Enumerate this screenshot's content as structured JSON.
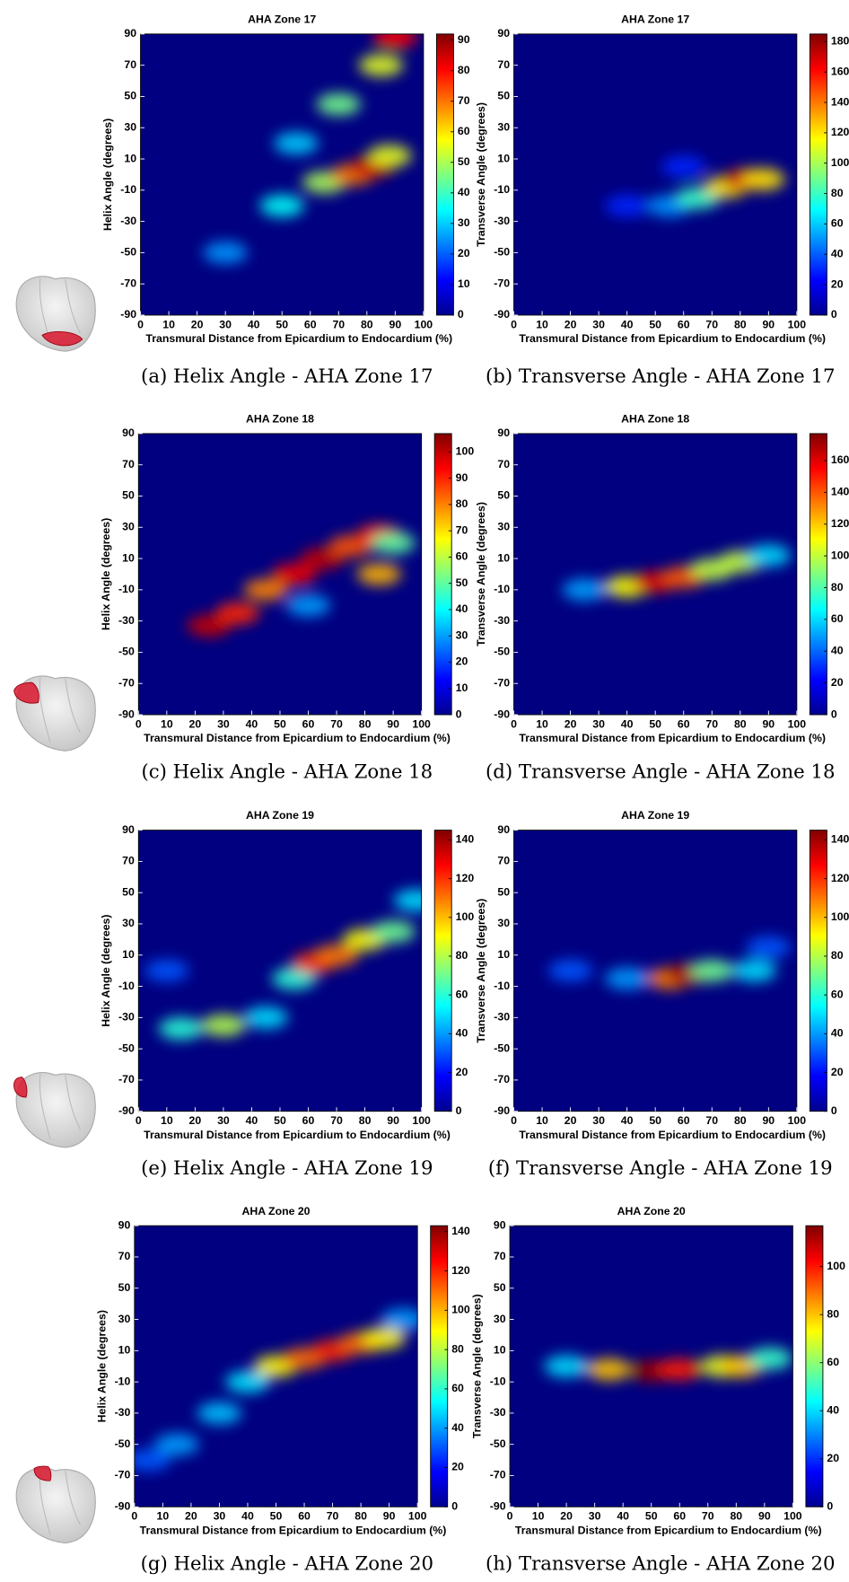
{
  "chart_data": [
    {
      "type": "heatmap",
      "title": "AHA Zone 17",
      "xlabel": "Transmural Distance from Epicardium to Endocardium (%)",
      "ylabel": "Helix Angle (degrees)",
      "caption": "(a) Helix Angle - AHA Zone 17",
      "xlim": [
        0,
        100
      ],
      "xticks": [
        0,
        10,
        20,
        30,
        40,
        50,
        60,
        70,
        80,
        90,
        100
      ],
      "ylim": [
        -90,
        90
      ],
      "yticks": [
        -90,
        -70,
        -50,
        -30,
        -10,
        10,
        30,
        50,
        70,
        90
      ],
      "clim": [
        0,
        92
      ],
      "cticks": [
        0,
        10,
        20,
        30,
        40,
        50,
        60,
        70,
        80,
        90
      ],
      "peaks": {
        "x": [
          30,
          50,
          65,
          75,
          82,
          88,
          55,
          70,
          85,
          90
        ],
        "y": [
          -50,
          -20,
          -5,
          0,
          5,
          12,
          20,
          45,
          70,
          88
        ],
        "values": [
          25,
          35,
          50,
          70,
          85,
          55,
          30,
          45,
          55,
          80
        ]
      }
    },
    {
      "type": "heatmap",
      "title": "AHA Zone 17",
      "xlabel": "Transmural Distance from Epicardium to Endocardium (%)",
      "ylabel": "Transverse Angle (degrees)",
      "caption": "(b) Transverse Angle - AHA Zone 17",
      "xlim": [
        0,
        100
      ],
      "xticks": [
        0,
        10,
        20,
        30,
        40,
        50,
        60,
        70,
        80,
        90,
        100
      ],
      "ylim": [
        -90,
        90
      ],
      "yticks": [
        -90,
        -70,
        -50,
        -30,
        -10,
        10,
        30,
        50,
        70,
        90
      ],
      "clim": [
        0,
        185
      ],
      "cticks": [
        0,
        20,
        40,
        60,
        80,
        100,
        120,
        140,
        160,
        180
      ],
      "peaks": {
        "x": [
          40,
          55,
          65,
          75,
          82,
          88,
          60
        ],
        "y": [
          -20,
          -20,
          -15,
          -8,
          -3,
          -3,
          5
        ],
        "values": [
          30,
          50,
          80,
          120,
          170,
          120,
          30
        ]
      }
    },
    {
      "type": "heatmap",
      "title": "AHA Zone 18",
      "xlabel": "Transmural Distance from Epicardium to Endocardium (%)",
      "ylabel": "Helix Angle (degrees)",
      "caption": "(c) Helix Angle - AHA Zone 18",
      "xlim": [
        0,
        100
      ],
      "xticks": [
        0,
        10,
        20,
        30,
        40,
        50,
        60,
        70,
        80,
        90,
        100
      ],
      "ylim": [
        -90,
        90
      ],
      "yticks": [
        -90,
        -70,
        -50,
        -30,
        -10,
        10,
        30,
        50,
        70,
        90
      ],
      "clim": [
        0,
        107
      ],
      "cticks": [
        0,
        10,
        20,
        30,
        40,
        50,
        60,
        70,
        80,
        90,
        100
      ],
      "peaks": {
        "x": [
          25,
          35,
          45,
          55,
          65,
          75,
          85,
          85,
          60,
          90
        ],
        "y": [
          -33,
          -25,
          -10,
          0,
          10,
          18,
          25,
          0,
          -20,
          20
        ],
        "values": [
          100,
          90,
          80,
          95,
          100,
          85,
          90,
          75,
          30,
          50
        ]
      }
    },
    {
      "type": "heatmap",
      "title": "AHA Zone 18",
      "xlabel": "Transmural Distance from Epicardium to Endocardium (%)",
      "ylabel": "Transverse Angle (degrees)",
      "caption": "(d) Transverse Angle - AHA Zone 18",
      "xlim": [
        0,
        100
      ],
      "xticks": [
        0,
        10,
        20,
        30,
        40,
        50,
        60,
        70,
        80,
        90,
        100
      ],
      "ylim": [
        -90,
        90
      ],
      "yticks": [
        -90,
        -70,
        -50,
        -30,
        -10,
        10,
        30,
        50,
        70,
        90
      ],
      "clim": [
        0,
        177
      ],
      "cticks": [
        0,
        20,
        40,
        60,
        80,
        100,
        120,
        140,
        160
      ],
      "peaks": {
        "x": [
          25,
          40,
          50,
          60,
          70,
          80,
          90
        ],
        "y": [
          -10,
          -8,
          -5,
          -2,
          3,
          8,
          12
        ],
        "values": [
          50,
          110,
          160,
          140,
          100,
          100,
          60
        ]
      }
    },
    {
      "type": "heatmap",
      "title": "AHA Zone 19",
      "xlabel": "Transmural Distance from Epicardium to Endocardium (%)",
      "ylabel": "Helix Angle (degrees)",
      "caption": "(e) Helix Angle - AHA Zone 19",
      "xlim": [
        0,
        100
      ],
      "xticks": [
        0,
        10,
        20,
        30,
        40,
        50,
        60,
        70,
        80,
        90,
        100
      ],
      "ylim": [
        -90,
        90
      ],
      "yticks": [
        -90,
        -70,
        -50,
        -30,
        -10,
        10,
        30,
        50,
        70,
        90
      ],
      "clim": [
        0,
        145
      ],
      "cticks": [
        0,
        20,
        40,
        60,
        80,
        100,
        120,
        140
      ],
      "peaks": {
        "x": [
          15,
          30,
          45,
          55,
          62,
          70,
          80,
          90,
          98,
          10
        ],
        "y": [
          -37,
          -35,
          -30,
          -5,
          5,
          10,
          20,
          25,
          45,
          0
        ],
        "values": [
          60,
          80,
          50,
          60,
          120,
          110,
          90,
          70,
          50,
          30
        ]
      }
    },
    {
      "type": "heatmap",
      "title": "AHA Zone 19",
      "xlabel": "Transmural Distance from Epicardium to Endocardium (%)",
      "ylabel": "Transverse Angle (degrees)",
      "caption": "(f) Transverse Angle - AHA Zone 19",
      "xlim": [
        0,
        100
      ],
      "xticks": [
        0,
        10,
        20,
        30,
        40,
        50,
        60,
        70,
        80,
        90,
        100
      ],
      "ylim": [
        -90,
        90
      ],
      "yticks": [
        -90,
        -70,
        -50,
        -30,
        -10,
        10,
        30,
        50,
        70,
        90
      ],
      "clim": [
        0,
        145
      ],
      "cticks": [
        0,
        20,
        40,
        60,
        80,
        100,
        120,
        140
      ],
      "peaks": {
        "x": [
          20,
          40,
          55,
          62,
          70,
          85,
          90
        ],
        "y": [
          0,
          -5,
          -5,
          -2,
          0,
          0,
          15
        ],
        "values": [
          30,
          40,
          110,
          140,
          70,
          50,
          30
        ]
      }
    },
    {
      "type": "heatmap",
      "title": "AHA Zone 20",
      "xlabel": "Transmural Distance from Epicardium to Endocardium (%)",
      "ylabel": "Helix Angle (degrees)",
      "caption": "(g) Helix Angle - AHA Zone 20",
      "xlim": [
        0,
        100
      ],
      "xticks": [
        0,
        10,
        20,
        30,
        40,
        50,
        60,
        70,
        80,
        90,
        100
      ],
      "ylim": [
        -90,
        90
      ],
      "yticks": [
        -90,
        -70,
        -50,
        -30,
        -10,
        10,
        30,
        50,
        70,
        90
      ],
      "clim": [
        0,
        143
      ],
      "cticks": [
        0,
        20,
        40,
        60,
        80,
        100,
        120,
        140
      ],
      "peaks": {
        "x": [
          5,
          15,
          30,
          40,
          50,
          60,
          70,
          80,
          88,
          95
        ],
        "y": [
          -60,
          -50,
          -30,
          -10,
          0,
          5,
          10,
          15,
          18,
          30
        ],
        "values": [
          30,
          40,
          45,
          50,
          90,
          110,
          120,
          110,
          90,
          40
        ]
      }
    },
    {
      "type": "heatmap",
      "title": "AHA Zone 20",
      "xlabel": "Transmural Distance from Epicardium to Endocardium (%)",
      "ylabel": "Transverse Angle (degrees)",
      "caption": "(h) Transverse Angle - AHA Zone 20",
      "xlim": [
        0,
        100
      ],
      "xticks": [
        0,
        10,
        20,
        30,
        40,
        50,
        60,
        70,
        80,
        90,
        100
      ],
      "ylim": [
        -90,
        90
      ],
      "yticks": [
        -90,
        -70,
        -50,
        -30,
        -10,
        10,
        30,
        50,
        70,
        90
      ],
      "clim": [
        0,
        117
      ],
      "cticks": [
        0,
        20,
        40,
        60,
        80,
        100
      ],
      "peaks": {
        "x": [
          20,
          35,
          50,
          60,
          75,
          82,
          92
        ],
        "y": [
          0,
          -2,
          -3,
          -2,
          0,
          0,
          5
        ],
        "values": [
          40,
          80,
          115,
          100,
          70,
          80,
          50
        ]
      }
    }
  ]
}
